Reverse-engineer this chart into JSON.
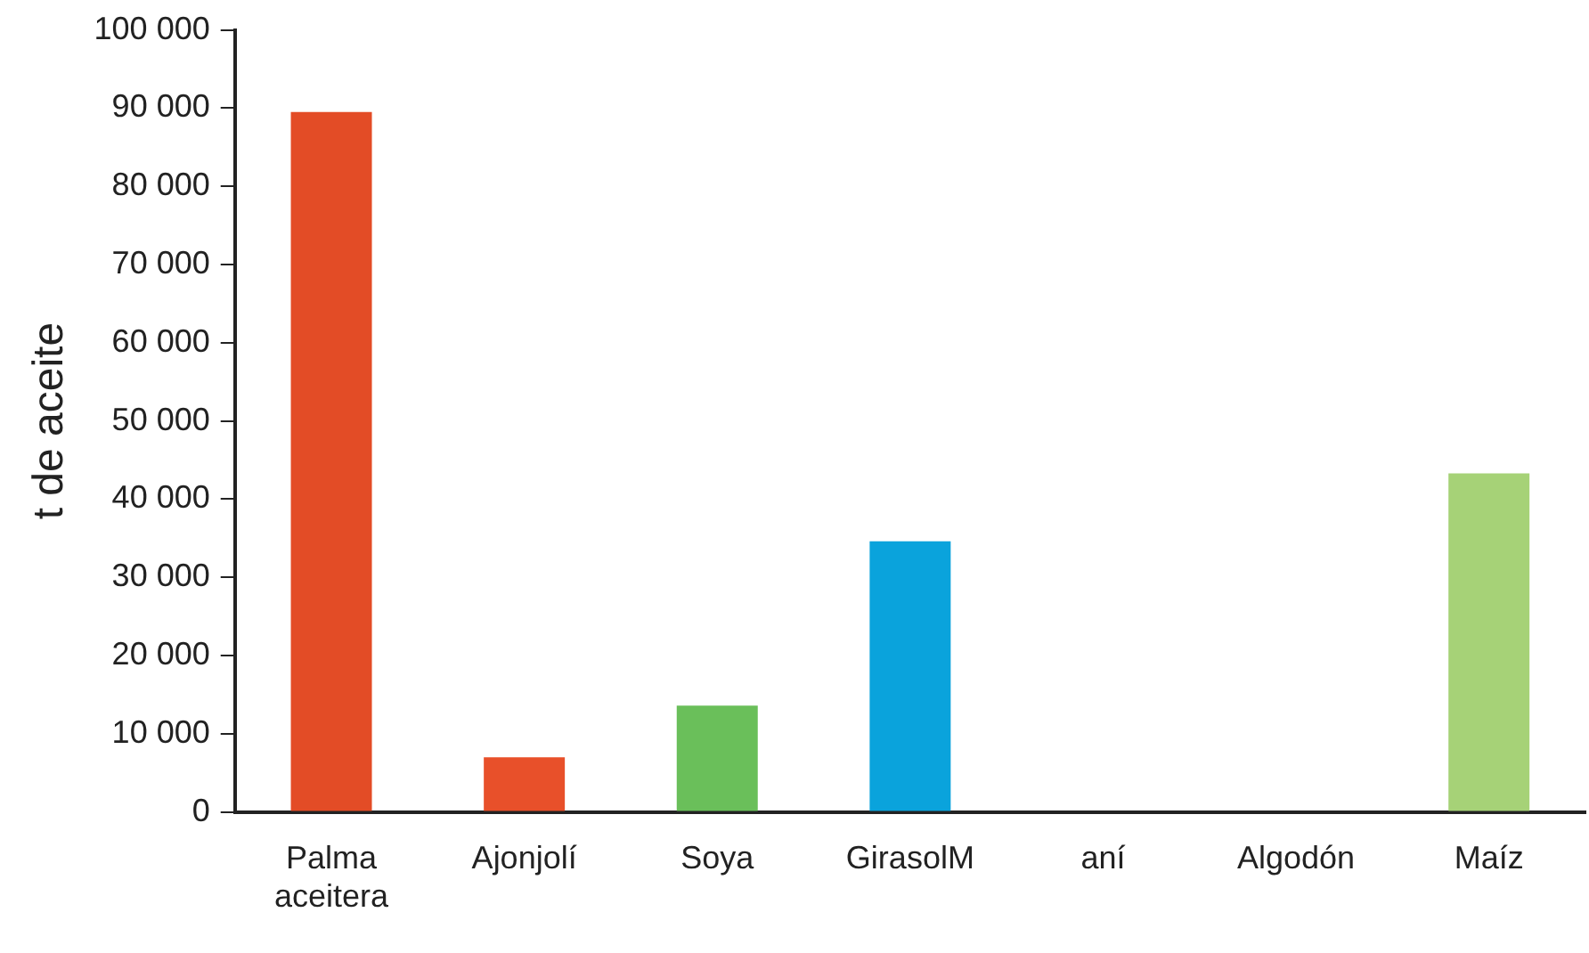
{
  "chart_data": {
    "type": "bar",
    "ylabel": "t de aceite",
    "categories": [
      "Palma aceitera",
      "Ajonjolí",
      "Soya",
      "GirasolM",
      "aní",
      "Algodón",
      "Maíz"
    ],
    "values": [
      89500,
      7000,
      13600,
      34600,
      0,
      0,
      43300
    ],
    "colors": [
      "#e34c26",
      "#e8502a",
      "#6abf5a",
      "#0aa3dc",
      "#e8502a",
      "#e8502a",
      "#a6d277"
    ],
    "ylim": [
      0,
      100000
    ],
    "yticks": [
      {
        "value": 0,
        "label": "0"
      },
      {
        "value": 10000,
        "label": "10 000"
      },
      {
        "value": 20000,
        "label": "20 000"
      },
      {
        "value": 30000,
        "label": "30 000"
      },
      {
        "value": 40000,
        "label": "40 000"
      },
      {
        "value": 50000,
        "label": "50 000"
      },
      {
        "value": 60000,
        "label": "60 000"
      },
      {
        "value": 70000,
        "label": "70 000"
      },
      {
        "value": 80000,
        "label": "80 000"
      },
      {
        "value": 90000,
        "label": "90 000"
      },
      {
        "value": 100000,
        "label": "100 000"
      }
    ],
    "grid": false,
    "legend": false
  }
}
